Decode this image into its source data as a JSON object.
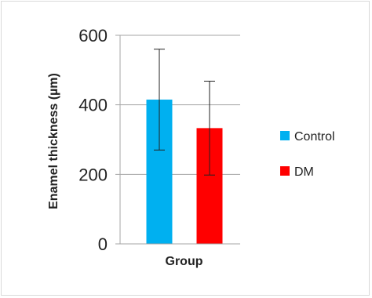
{
  "chart_data": {
    "type": "bar",
    "title": "",
    "xlabel": "Group",
    "ylabel": "Enamel thickness (µm)",
    "ylim": [
      0,
      600
    ],
    "yticks": [
      0,
      200,
      400,
      600
    ],
    "grid": true,
    "legend_position": "right",
    "series": [
      {
        "name": "Control",
        "value": 415,
        "error": 145,
        "color": "#00b0f0"
      },
      {
        "name": "DM",
        "value": 333,
        "error": 135,
        "color": "#ff0000"
      }
    ]
  }
}
